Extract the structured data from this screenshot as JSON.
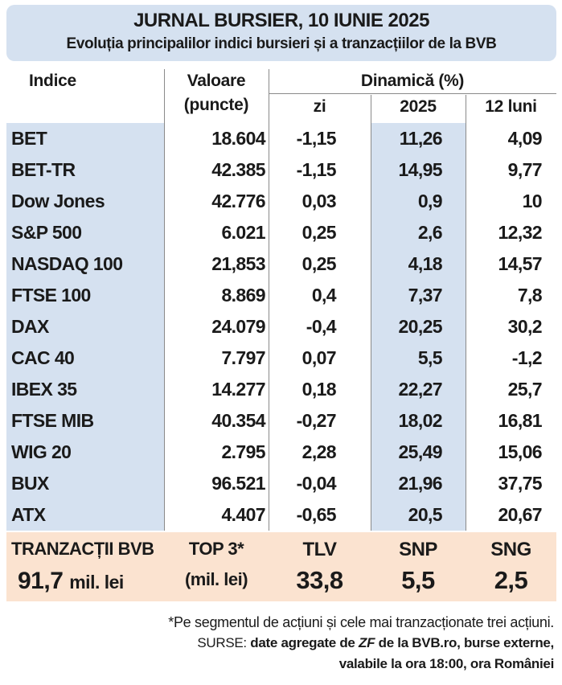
{
  "header": {
    "title": "JURNAL BURSIER, 10 IUNIE 2025",
    "subtitle": "Evoluția principalilor indici bursieri și a tranzacțiilor de la BVB"
  },
  "columns": {
    "indice": "Indice",
    "valoare": "Valoare",
    "valoare_unit": "(puncte)",
    "dinamica": "Dinamică (%)",
    "zi": "zi",
    "an": "2025",
    "luni": "12 luni"
  },
  "rows": [
    {
      "name": "BET",
      "value": "18.604",
      "zi": "-1,15",
      "an": "11,26",
      "luni": "4,09"
    },
    {
      "name": "BET-TR",
      "value": "42.385",
      "zi": "-1,15",
      "an": "14,95",
      "luni": "9,77"
    },
    {
      "name": "Dow Jones",
      "value": "42.776",
      "zi": "0,03",
      "an": "0,9",
      "luni": "10"
    },
    {
      "name": "S&P 500",
      "value": "6.021",
      "zi": "0,25",
      "an": "2,6",
      "luni": "12,32"
    },
    {
      "name": "NASDAQ 100",
      "value": "21,853",
      "zi": "0,25",
      "an": "4,18",
      "luni": "14,57"
    },
    {
      "name": "FTSE 100",
      "value": "8.869",
      "zi": "0,4",
      "an": "7,37",
      "luni": "7,8"
    },
    {
      "name": "DAX",
      "value": "24.079",
      "zi": "-0,4",
      "an": "20,25",
      "luni": "30,2"
    },
    {
      "name": "CAC 40",
      "value": "7.797",
      "zi": "0,07",
      "an": "5,5",
      "luni": "-1,2"
    },
    {
      "name": "IBEX 35",
      "value": "14.277",
      "zi": "0,18",
      "an": "22,27",
      "luni": "25,7"
    },
    {
      "name": "FTSE MIB",
      "value": "40.354",
      "zi": "-0,27",
      "an": "18,02",
      "luni": "16,81"
    },
    {
      "name": "WIG 20",
      "value": "2.795",
      "zi": "2,28",
      "an": "25,49",
      "luni": "15,06"
    },
    {
      "name": "BUX",
      "value": "96.521",
      "zi": "-0,04",
      "an": "21,96",
      "luni": "37,75"
    },
    {
      "name": "ATX",
      "value": "4.407",
      "zi": "-0,65",
      "an": "20,5",
      "luni": "20,67"
    }
  ],
  "bvb": {
    "label": "TRANZACȚII BVB",
    "amount": "91,7",
    "amount_unit": "mil. lei",
    "top_label": "TOP 3*",
    "top_unit": "(mil. lei)",
    "top": [
      {
        "ticker": "TLV",
        "value": "33,8"
      },
      {
        "ticker": "SNP",
        "value": "5,5"
      },
      {
        "ticker": "SNG",
        "value": "2,5"
      }
    ]
  },
  "footer": {
    "note": "*Pe segmentul de acțiuni și cele mai tranzacționate trei acțiuni.",
    "sources_label": "SURSE:",
    "sources_part1": "date agregate de",
    "sources_zf": "ZF",
    "sources_part2": "de la BVB.ro, burse externe,",
    "sources_line2": "valabile la ora 18:00, ora României"
  },
  "colors": {
    "title_bg": "#d5e1f0",
    "stripe": "#d5e1f0",
    "bvb_bg": "#fbe3d0"
  }
}
